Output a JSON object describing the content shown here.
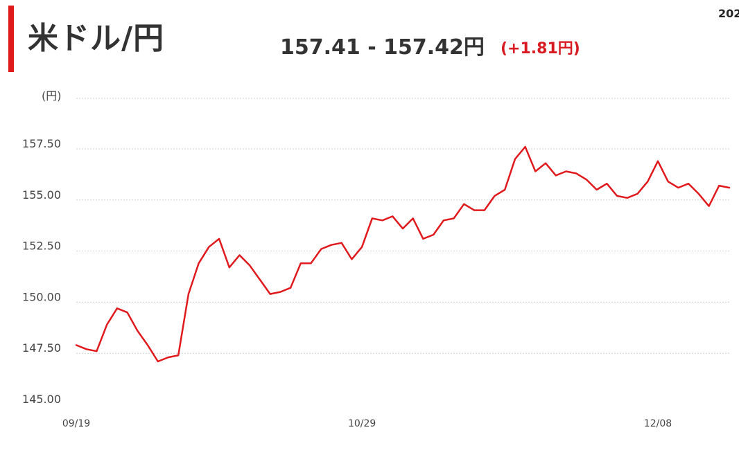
{
  "header": {
    "title": "米ドル/円",
    "quote": "157.41 - 157.42円",
    "change": "(+1.81円)",
    "corner_date": "202"
  },
  "colors": {
    "accent": "#e0191d",
    "line": "#e0191d",
    "change": "#d81b22",
    "grid": "#cfcfcf"
  },
  "chart_data": {
    "type": "line",
    "title": "",
    "xlabel": "",
    "ylabel": "(円)",
    "ylim": [
      145.0,
      157.5
    ],
    "y_ticks": [
      "145.00",
      "147.50",
      "150.00",
      "152.50",
      "155.00",
      "157.50"
    ],
    "x_ticks": [
      {
        "index": 0,
        "label": "09/19"
      },
      {
        "index": 28,
        "label": "10/29"
      },
      {
        "index": 57,
        "label": "12/08"
      }
    ],
    "grid": true,
    "series": [
      {
        "values": [
          147.9,
          147.7,
          147.6,
          148.9,
          149.7,
          149.5,
          148.6,
          147.9,
          147.1,
          147.3,
          147.4,
          150.4,
          151.9,
          152.7,
          153.1,
          151.7,
          152.3,
          151.8,
          151.1,
          150.4,
          150.5,
          150.7,
          151.9,
          151.9,
          152.6,
          152.8,
          152.9,
          152.1,
          152.7,
          154.1,
          154.0,
          154.2,
          153.6,
          154.1,
          153.1,
          153.3,
          154.0,
          154.1,
          154.8,
          154.5,
          154.5,
          155.2,
          155.5,
          157.0,
          157.6,
          156.4,
          156.8,
          156.2,
          156.4,
          156.3,
          156.0,
          155.5,
          155.8,
          155.2,
          155.1,
          155.3,
          155.9,
          156.9,
          155.9,
          155.6,
          155.8,
          155.3,
          154.7,
          155.7,
          155.6
        ]
      }
    ]
  }
}
